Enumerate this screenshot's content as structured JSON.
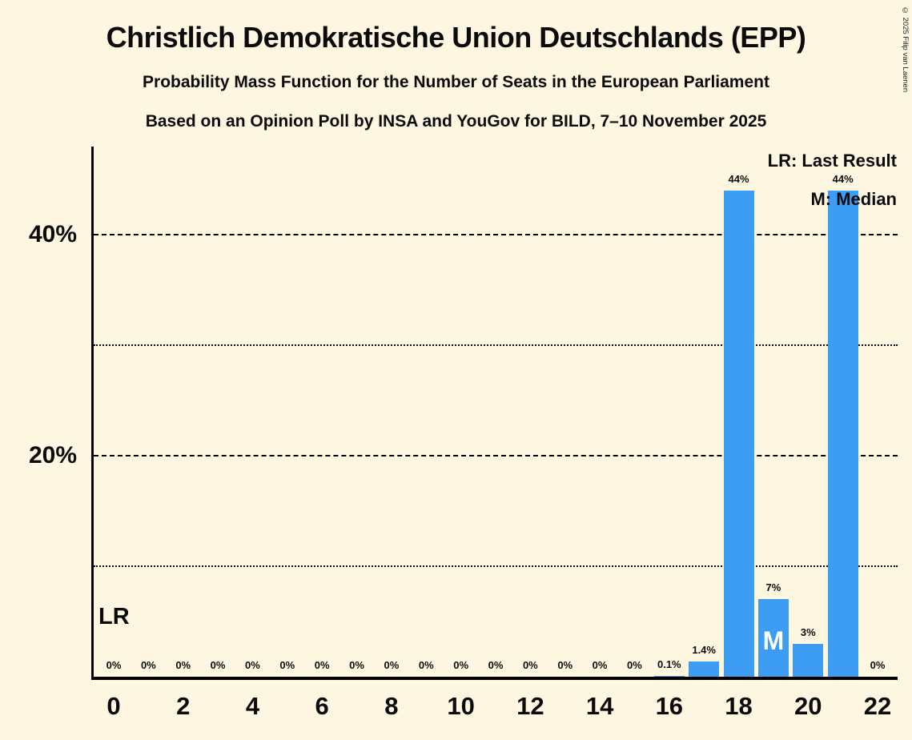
{
  "header": {
    "title": "Christlich Demokratische Union Deutschlands (EPP)",
    "subtitle1": "Probability Mass Function for the Number of Seats in the European Parliament",
    "subtitle2": "Based on an Opinion Poll by INSA and YouGov for BILD, 7–10 November 2025"
  },
  "copyright": "© 2025 Filip van Laenen",
  "legend": {
    "lr": "LR: Last Result",
    "m": "M: Median"
  },
  "annotations": {
    "last_result": "LR",
    "median": "M"
  },
  "colors": {
    "background": "#FDF7E2",
    "bar": "#3D9DF3",
    "text": "#0B0B0B",
    "median_marker": "#FFFFFF",
    "axis": "#000000"
  },
  "chart_data": {
    "type": "bar",
    "title": "Probability Mass Function for the Number of Seats in the European Parliament",
    "x": [
      0,
      1,
      2,
      3,
      4,
      5,
      6,
      7,
      8,
      9,
      10,
      11,
      12,
      13,
      14,
      15,
      16,
      17,
      18,
      19,
      20,
      21,
      22
    ],
    "values": [
      0,
      0,
      0,
      0,
      0,
      0,
      0,
      0,
      0,
      0,
      0,
      0,
      0,
      0,
      0,
      0,
      0.1,
      1.4,
      44,
      7,
      3,
      44,
      0
    ],
    "labels": [
      "0%",
      "0%",
      "0%",
      "0%",
      "0%",
      "0%",
      "0%",
      "0%",
      "0%",
      "0%",
      "0%",
      "0%",
      "0%",
      "0%",
      "0%",
      "0%",
      "0.1%",
      "1.4%",
      "44%",
      "7%",
      "3%",
      "44%",
      "0%"
    ],
    "xticks": [
      0,
      2,
      4,
      6,
      8,
      10,
      12,
      14,
      16,
      18,
      20,
      22
    ],
    "gridlines": [
      {
        "value": 10,
        "style": "dotted",
        "label": ""
      },
      {
        "value": 20,
        "style": "dashed",
        "label": "20%"
      },
      {
        "value": 30,
        "style": "dotted",
        "label": ""
      },
      {
        "value": 40,
        "style": "dashed",
        "label": "40%"
      }
    ],
    "ylim": [
      0,
      48
    ],
    "median_seat": 19,
    "last_result_seat": 0,
    "legend_position": "top-right",
    "grid": "horizontal-only"
  }
}
